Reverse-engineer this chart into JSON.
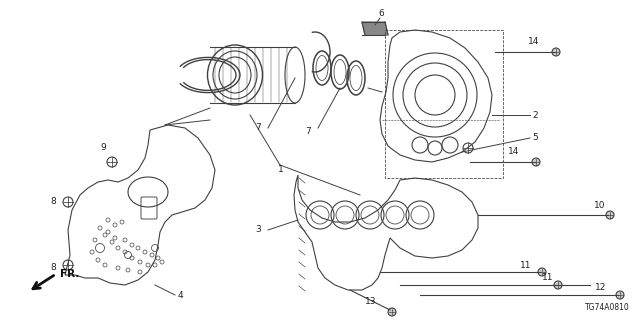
{
  "background_color": "#ffffff",
  "line_color": "#404040",
  "text_color": "#222222",
  "diagram_code": "TG74A0810",
  "figsize": [
    6.4,
    3.2
  ],
  "dpi": 100,
  "xlim": [
    0,
    640
  ],
  "ylim": [
    0,
    320
  ]
}
